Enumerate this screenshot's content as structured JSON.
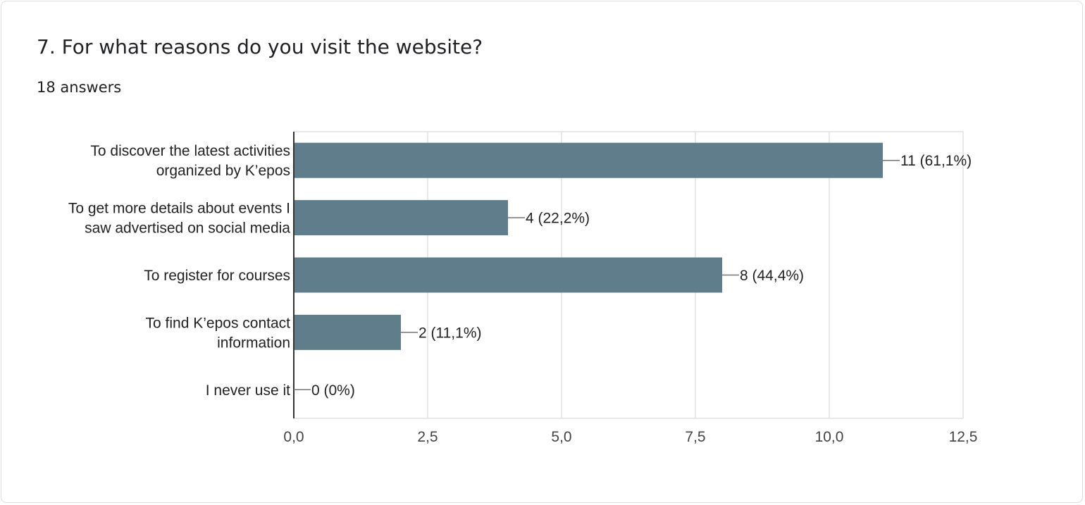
{
  "question": {
    "title": "7. For what reasons do you visit the website?",
    "answers": "18 answers"
  },
  "colors": {
    "bar": "#607d8b",
    "grid": "#e0e0e0",
    "axis": "#333333",
    "leader": "#757575"
  },
  "chart_data": {
    "type": "bar",
    "orientation": "horizontal",
    "categories": [
      [
        "To discover the latest activities",
        "organized by K’epos"
      ],
      [
        "To get more details about events I",
        "saw advertised on social media"
      ],
      [
        "To register for courses"
      ],
      [
        "To find K’epos contact",
        "information"
      ],
      [
        "I never use it"
      ]
    ],
    "values": [
      11,
      4,
      8,
      2,
      0
    ],
    "data_labels": [
      "11 (61,1%)",
      "4 (22,2%)",
      "8 (44,4%)",
      "2 (11,1%)",
      "0 (0%)"
    ],
    "xlim": [
      0,
      12.5
    ],
    "ticks": [
      0,
      2.5,
      5,
      7.5,
      10,
      12.5
    ],
    "tick_labels": [
      "0,0",
      "2,5",
      "5,0",
      "7,5",
      "10,0",
      "12,5"
    ],
    "grid": true,
    "legend": "none",
    "title": "",
    "xlabel": "",
    "ylabel": ""
  }
}
